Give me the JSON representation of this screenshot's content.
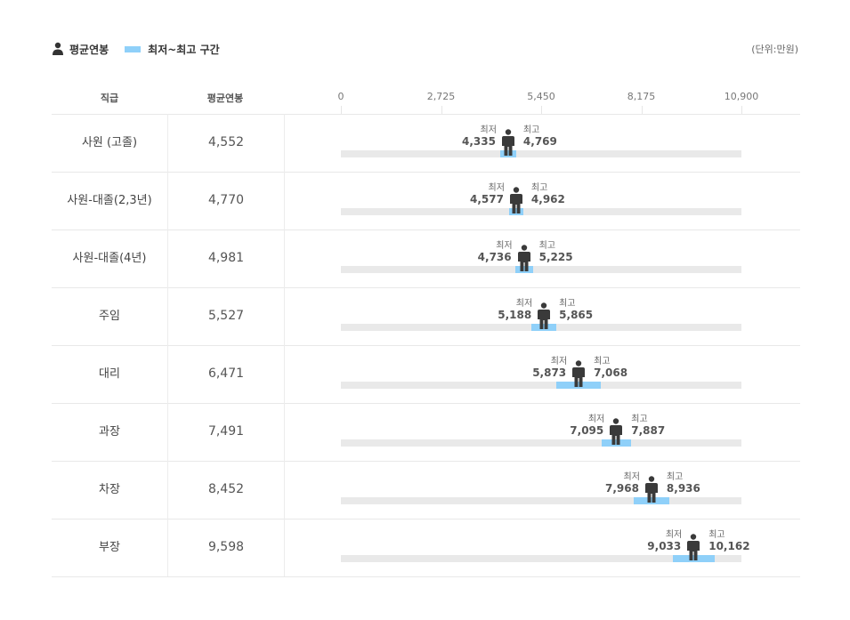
{
  "legend": {
    "avg_label": "평균연봉",
    "range_label": "최저~최고 구간",
    "unit": "(단위:만원)"
  },
  "header": {
    "grade": "직급",
    "avg": "평균연봉"
  },
  "labels": {
    "min": "최저",
    "max": "최고"
  },
  "colors": {
    "range": "#8fd0f9",
    "track": "#e9e9e9",
    "marker": "#3a3a3a"
  },
  "chart_data": {
    "type": "range",
    "xlim": [
      0,
      10900
    ],
    "xticks": [
      "0",
      "2,725",
      "5,450",
      "8,175",
      "10,900"
    ],
    "rows": [
      {
        "grade": "사원 (고졸)",
        "avg": 4552,
        "avg_label": "4,552",
        "min": 4335,
        "min_label": "4,335",
        "max": 4769,
        "max_label": "4,769"
      },
      {
        "grade": "사원-대졸(2,3년)",
        "avg": 4770,
        "avg_label": "4,770",
        "min": 4577,
        "min_label": "4,577",
        "max": 4962,
        "max_label": "4,962"
      },
      {
        "grade": "사원-대졸(4년)",
        "avg": 4981,
        "avg_label": "4,981",
        "min": 4736,
        "min_label": "4,736",
        "max": 5225,
        "max_label": "5,225"
      },
      {
        "grade": "주임",
        "avg": 5527,
        "avg_label": "5,527",
        "min": 5188,
        "min_label": "5,188",
        "max": 5865,
        "max_label": "5,865"
      },
      {
        "grade": "대리",
        "avg": 6471,
        "avg_label": "6,471",
        "min": 5873,
        "min_label": "5,873",
        "max": 7068,
        "max_label": "7,068"
      },
      {
        "grade": "과장",
        "avg": 7491,
        "avg_label": "7,491",
        "min": 7095,
        "min_label": "7,095",
        "max": 7887,
        "max_label": "7,887"
      },
      {
        "grade": "차장",
        "avg": 8452,
        "avg_label": "8,452",
        "min": 7968,
        "min_label": "7,968",
        "max": 8936,
        "max_label": "8,936"
      },
      {
        "grade": "부장",
        "avg": 9598,
        "avg_label": "9,598",
        "min": 9033,
        "min_label": "9,033",
        "max": 10162,
        "max_label": "10,162"
      }
    ]
  }
}
